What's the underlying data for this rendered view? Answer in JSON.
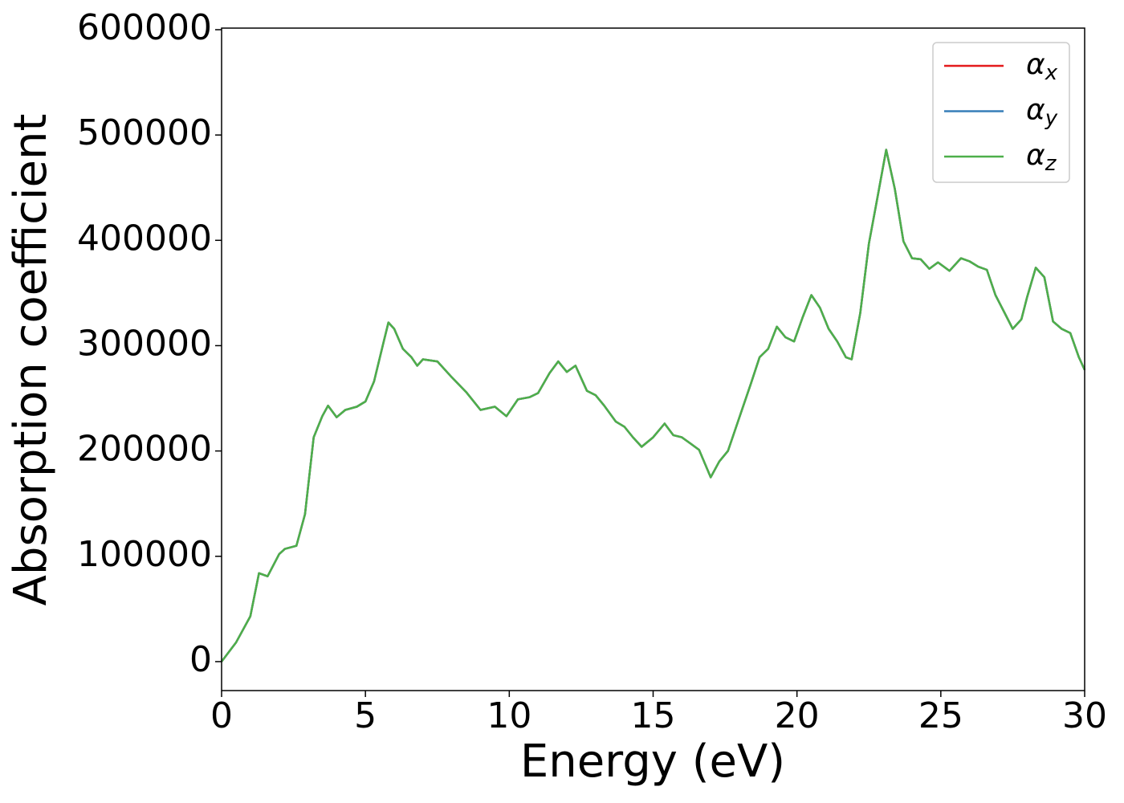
{
  "chart_data": {
    "type": "line",
    "xlabel": "Energy (eV)",
    "ylabel": "Absorption coefficient",
    "x": [
      0,
      0.5,
      1.0,
      1.3,
      1.6,
      2.0,
      2.2,
      2.6,
      2.9,
      3.2,
      3.5,
      3.7,
      4.0,
      4.3,
      4.7,
      5.0,
      5.3,
      5.6,
      5.8,
      6.0,
      6.3,
      6.6,
      6.8,
      7.0,
      7.5,
      8.0,
      8.5,
      9.0,
      9.5,
      9.9,
      10.3,
      10.7,
      11.0,
      11.4,
      11.7,
      12.0,
      12.3,
      12.7,
      13.0,
      13.3,
      13.7,
      14.0,
      14.3,
      14.6,
      15.0,
      15.4,
      15.7,
      16.0,
      16.3,
      16.6,
      17.0,
      17.3,
      17.6,
      18.0,
      18.4,
      18.7,
      19.0,
      19.3,
      19.6,
      19.9,
      20.2,
      20.5,
      20.8,
      21.1,
      21.4,
      21.7,
      21.9,
      22.2,
      22.5,
      22.8,
      23.1,
      23.4,
      23.7,
      24.0,
      24.3,
      24.6,
      24.9,
      25.3,
      25.7,
      26.0,
      26.3,
      26.6,
      26.9,
      27.2,
      27.5,
      27.8,
      28.0,
      28.3,
      28.6,
      28.9,
      29.2,
      29.5,
      29.8,
      30.0
    ],
    "series": [
      {
        "name": "αx",
        "color": "#e41a1c",
        "values": [
          0,
          18000,
          43000,
          84000,
          81000,
          102000,
          107000,
          110000,
          140000,
          213000,
          233000,
          243000,
          232000,
          239000,
          242000,
          247000,
          266000,
          300000,
          322000,
          316000,
          297000,
          289000,
          281000,
          287000,
          285000,
          270000,
          256000,
          239000,
          242000,
          233000,
          249000,
          251000,
          255000,
          274000,
          285000,
          275000,
          281000,
          257000,
          253000,
          243000,
          228000,
          223000,
          213000,
          204000,
          213000,
          226000,
          215000,
          213000,
          207000,
          201000,
          175000,
          190000,
          200000,
          232000,
          264000,
          289000,
          297000,
          318000,
          308000,
          304000,
          327000,
          348000,
          336000,
          316000,
          304000,
          289000,
          287000,
          331000,
          397000,
          441000,
          486000,
          449000,
          399000,
          383000,
          382000,
          373000,
          379000,
          371000,
          383000,
          380000,
          375000,
          372000,
          348000,
          332000,
          316000,
          325000,
          346000,
          374000,
          365000,
          323000,
          316000,
          312000,
          289000,
          277000
        ]
      },
      {
        "name": "αy",
        "color": "#377eb8",
        "values": [
          0,
          18000,
          43000,
          84000,
          81000,
          102000,
          107000,
          110000,
          140000,
          213000,
          233000,
          243000,
          232000,
          239000,
          242000,
          247000,
          266000,
          300000,
          322000,
          316000,
          297000,
          289000,
          281000,
          287000,
          285000,
          270000,
          256000,
          239000,
          242000,
          233000,
          249000,
          251000,
          255000,
          274000,
          285000,
          275000,
          281000,
          257000,
          253000,
          243000,
          228000,
          223000,
          213000,
          204000,
          213000,
          226000,
          215000,
          213000,
          207000,
          201000,
          175000,
          190000,
          200000,
          232000,
          264000,
          289000,
          297000,
          318000,
          308000,
          304000,
          327000,
          348000,
          336000,
          316000,
          304000,
          289000,
          287000,
          331000,
          397000,
          441000,
          486000,
          449000,
          399000,
          383000,
          382000,
          373000,
          379000,
          371000,
          383000,
          380000,
          375000,
          372000,
          348000,
          332000,
          316000,
          325000,
          346000,
          374000,
          365000,
          323000,
          316000,
          312000,
          289000,
          277000
        ]
      },
      {
        "name": "αz",
        "color": "#4daf4a",
        "values": [
          0,
          18000,
          43000,
          84000,
          81000,
          102000,
          107000,
          110000,
          140000,
          213000,
          233000,
          243000,
          232000,
          239000,
          242000,
          247000,
          266000,
          300000,
          322000,
          316000,
          297000,
          289000,
          281000,
          287000,
          285000,
          270000,
          256000,
          239000,
          242000,
          233000,
          249000,
          251000,
          255000,
          274000,
          285000,
          275000,
          281000,
          257000,
          253000,
          243000,
          228000,
          223000,
          213000,
          204000,
          213000,
          226000,
          215000,
          213000,
          207000,
          201000,
          175000,
          190000,
          200000,
          232000,
          264000,
          289000,
          297000,
          318000,
          308000,
          304000,
          327000,
          348000,
          336000,
          316000,
          304000,
          289000,
          287000,
          331000,
          397000,
          441000,
          486000,
          449000,
          399000,
          383000,
          382000,
          373000,
          379000,
          371000,
          383000,
          380000,
          375000,
          372000,
          348000,
          332000,
          316000,
          325000,
          346000,
          374000,
          365000,
          323000,
          316000,
          312000,
          289000,
          277000
        ]
      }
    ],
    "xlim": [
      0,
      30
    ],
    "xticks": [
      0,
      5,
      10,
      15,
      20,
      25,
      30
    ],
    "ylim": [
      -27500,
      601500
    ],
    "yticks": [
      0,
      100000,
      200000,
      300000,
      400000,
      500000,
      600000
    ],
    "grid": false,
    "legend": "upper right"
  }
}
